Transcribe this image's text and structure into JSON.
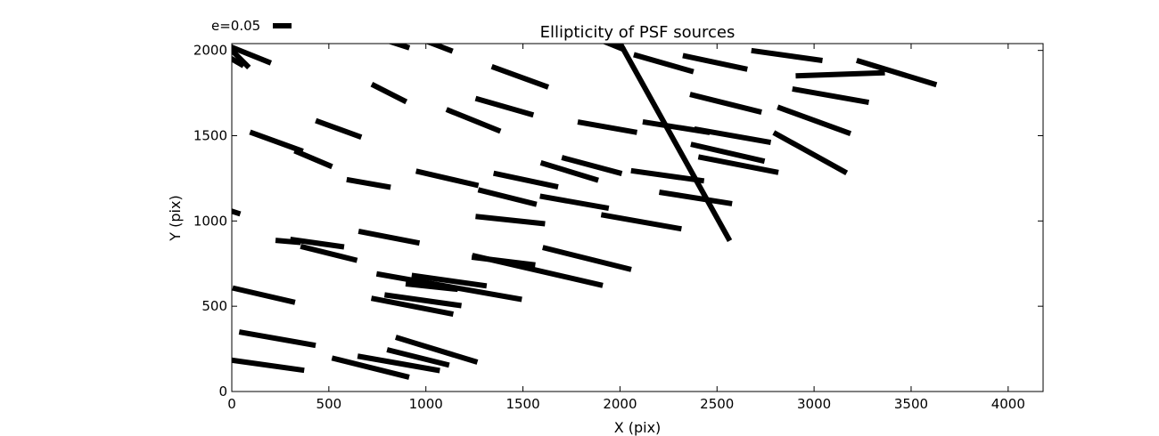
{
  "chart_data": {
    "type": "quiver",
    "title": "Ellipticity of PSF sources",
    "xlabel": "X (pix)",
    "ylabel": "Y (pix)",
    "xlim": [
      0,
      4180
    ],
    "ylim": [
      0,
      2040
    ],
    "xticks": [
      0,
      500,
      1000,
      1500,
      2000,
      2500,
      3000,
      3500,
      4000
    ],
    "yticks": [
      0,
      500,
      1000,
      1500,
      2000
    ],
    "grid": false,
    "legend": {
      "placement": "top-left",
      "key_label": "e=0.05",
      "key_ellipticity": 0.05
    },
    "segments": [
      {
        "x": 0,
        "y": 2000,
        "length": 250,
        "angle": -45
      },
      {
        "x": 0,
        "y": 1950,
        "length": 140,
        "angle": -30
      },
      {
        "x": 95,
        "y": 1975,
        "length": 230,
        "angle": -22
      },
      {
        "x": 820,
        "y": 2050,
        "length": 200,
        "angle": -18
      },
      {
        "x": 1035,
        "y": 2040,
        "length": 220,
        "angle": -21
      },
      {
        "x": 1945,
        "y": 2040,
        "length": 170,
        "angle": -22
      },
      {
        "x": 2282,
        "y": 1465,
        "length": 1170,
        "angle": -61
      },
      {
        "x": 2225,
        "y": 1925,
        "length": 320,
        "angle": -16
      },
      {
        "x": 2490,
        "y": 1930,
        "length": 340,
        "angle": -12
      },
      {
        "x": 2860,
        "y": 1970,
        "length": 370,
        "angle": -8
      },
      {
        "x": 3135,
        "y": 1860,
        "length": 460,
        "angle": 2
      },
      {
        "x": 3425,
        "y": 1870,
        "length": 430,
        "angle": -17
      },
      {
        "x": 1485,
        "y": 1845,
        "length": 310,
        "angle": -20
      },
      {
        "x": 810,
        "y": 1750,
        "length": 200,
        "angle": -27
      },
      {
        "x": 1405,
        "y": 1670,
        "length": 310,
        "angle": -16
      },
      {
        "x": 1245,
        "y": 1590,
        "length": 300,
        "angle": -22
      },
      {
        "x": 550,
        "y": 1540,
        "length": 250,
        "angle": -20
      },
      {
        "x": 2545,
        "y": 1690,
        "length": 380,
        "angle": -14
      },
      {
        "x": 3085,
        "y": 1735,
        "length": 400,
        "angle": -10
      },
      {
        "x": 3000,
        "y": 1590,
        "length": 400,
        "angle": -20
      },
      {
        "x": 1935,
        "y": 1550,
        "length": 310,
        "angle": -10
      },
      {
        "x": 2290,
        "y": 1550,
        "length": 350,
        "angle": -9
      },
      {
        "x": 2580,
        "y": 1500,
        "length": 400,
        "angle": -10
      },
      {
        "x": 2980,
        "y": 1400,
        "length": 430,
        "angle": -29
      },
      {
        "x": 230,
        "y": 1465,
        "length": 290,
        "angle": -20
      },
      {
        "x": 420,
        "y": 1365,
        "length": 210,
        "angle": -23
      },
      {
        "x": 1855,
        "y": 1325,
        "length": 320,
        "angle": -15
      },
      {
        "x": 2555,
        "y": 1400,
        "length": 390,
        "angle": -13
      },
      {
        "x": 1740,
        "y": 1290,
        "length": 310,
        "angle": -17
      },
      {
        "x": 2610,
        "y": 1330,
        "length": 420,
        "angle": -11
      },
      {
        "x": 705,
        "y": 1220,
        "length": 230,
        "angle": -10
      },
      {
        "x": 1110,
        "y": 1250,
        "length": 330,
        "angle": -13
      },
      {
        "x": 1515,
        "y": 1240,
        "length": 340,
        "angle": -12
      },
      {
        "x": 2245,
        "y": 1265,
        "length": 380,
        "angle": -8
      },
      {
        "x": 1420,
        "y": 1140,
        "length": 310,
        "angle": -14
      },
      {
        "x": 1765,
        "y": 1110,
        "length": 360,
        "angle": -10
      },
      {
        "x": 2390,
        "y": 1135,
        "length": 380,
        "angle": -9
      },
      {
        "x": 20,
        "y": 1050,
        "length": 50,
        "angle": -18
      },
      {
        "x": 1435,
        "y": 1005,
        "length": 360,
        "angle": -6
      },
      {
        "x": 2110,
        "y": 995,
        "length": 420,
        "angle": -10
      },
      {
        "x": 810,
        "y": 905,
        "length": 320,
        "angle": -11
      },
      {
        "x": 290,
        "y": 880,
        "length": 130,
        "angle": -5
      },
      {
        "x": 440,
        "y": 870,
        "length": 280,
        "angle": -8
      },
      {
        "x": 500,
        "y": 810,
        "length": 300,
        "angle": -14
      },
      {
        "x": 1830,
        "y": 780,
        "length": 470,
        "angle": -14
      },
      {
        "x": 1400,
        "y": 765,
        "length": 330,
        "angle": -7
      },
      {
        "x": 1575,
        "y": 710,
        "length": 690,
        "angle": -13
      },
      {
        "x": 1120,
        "y": 650,
        "length": 390,
        "angle": -8
      },
      {
        "x": 1120,
        "y": 615,
        "length": 760,
        "angle": -10
      },
      {
        "x": 1030,
        "y": 615,
        "length": 270,
        "angle": -6
      },
      {
        "x": 165,
        "y": 565,
        "length": 330,
        "angle": -13
      },
      {
        "x": 985,
        "y": 535,
        "length": 400,
        "angle": -8
      },
      {
        "x": 930,
        "y": 500,
        "length": 430,
        "angle": -11
      },
      {
        "x": 235,
        "y": 310,
        "length": 400,
        "angle": -10
      },
      {
        "x": 1055,
        "y": 245,
        "length": 440,
        "angle": -17
      },
      {
        "x": 960,
        "y": 200,
        "length": 330,
        "angle": -14
      },
      {
        "x": 860,
        "y": 165,
        "length": 430,
        "angle": -10
      },
      {
        "x": 715,
        "y": 140,
        "length": 410,
        "angle": -14
      },
      {
        "x": 180,
        "y": 155,
        "length": 390,
        "angle": -8
      }
    ]
  }
}
